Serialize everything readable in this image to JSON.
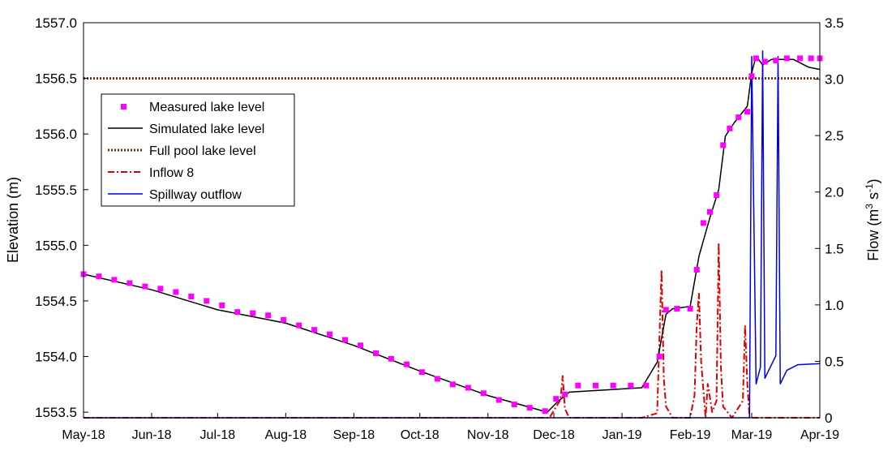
{
  "chart_data": {
    "type": "line",
    "ylabel": "Elevation (m)",
    "y2label": {
      "prefix": "Flow (m",
      "sup1": "3",
      "middle": " s",
      "sup2": "-1",
      "suffix": ")"
    },
    "ylim": [
      1553.45,
      1557.0
    ],
    "y2lim": [
      0,
      3.5
    ],
    "xlim": [
      "2018-05-01",
      "2019-04-01"
    ],
    "xticks": [
      {
        "label": "May-18",
        "date": "2018-05-01"
      },
      {
        "label": "Jun-18",
        "date": "2018-06-01"
      },
      {
        "label": "Jul-18",
        "date": "2018-07-01"
      },
      {
        "label": "Aug-18",
        "date": "2018-08-01"
      },
      {
        "label": "Sep-18",
        "date": "2018-09-01"
      },
      {
        "label": "Oct-18",
        "date": "2018-10-01"
      },
      {
        "label": "Nov-18",
        "date": "2018-11-01"
      },
      {
        "label": "Dec-18",
        "date": "2018-12-01"
      },
      {
        "label": "Jan-19",
        "date": "2019-01-01"
      },
      {
        "label": "Feb-19",
        "date": "2019-02-01"
      },
      {
        "label": "Mar-19",
        "date": "2019-03-01"
      },
      {
        "label": "Apr-19",
        "date": "2019-04-01"
      }
    ],
    "yticks": [
      "1553.5",
      "1554.0",
      "1554.5",
      "1555.0",
      "1555.5",
      "1556.0",
      "1556.5",
      "1557.0"
    ],
    "y2ticks": [
      "0",
      "0.5",
      "1.0",
      "1.5",
      "2.0",
      "2.5",
      "3.0",
      "3.5"
    ],
    "legend": {
      "placement": "upper-left",
      "entries": [
        {
          "label": "Measured lake level",
          "color": "#ff00ff",
          "style": "marker"
        },
        {
          "label": "Simulated lake level",
          "color": "#000000",
          "style": "solid"
        },
        {
          "label": "Full pool lake level",
          "color": "#8b2500",
          "style": "dotted"
        },
        {
          "label": "Inflow 8",
          "color": "#e00000",
          "style": "dashdot"
        },
        {
          "label": "Spillway outflow",
          "color": "#0000e0",
          "style": "solid"
        }
      ]
    },
    "full_pool_level": 1556.5,
    "series": [
      {
        "name": "Measured lake level",
        "axis": "left",
        "points": [
          [
            "2018-05-01",
            1554.74
          ],
          [
            "2018-05-08",
            1554.72
          ],
          [
            "2018-05-15",
            1554.69
          ],
          [
            "2018-05-22",
            1554.66
          ],
          [
            "2018-05-29",
            1554.63
          ],
          [
            "2018-06-05",
            1554.61
          ],
          [
            "2018-06-12",
            1554.58
          ],
          [
            "2018-06-19",
            1554.54
          ],
          [
            "2018-06-26",
            1554.5
          ],
          [
            "2018-07-03",
            1554.46
          ],
          [
            "2018-07-10",
            1554.4
          ],
          [
            "2018-07-17",
            1554.39
          ],
          [
            "2018-07-24",
            1554.37
          ],
          [
            "2018-07-31",
            1554.33
          ],
          [
            "2018-08-07",
            1554.28
          ],
          [
            "2018-08-14",
            1554.24
          ],
          [
            "2018-08-21",
            1554.2
          ],
          [
            "2018-08-28",
            1554.15
          ],
          [
            "2018-09-04",
            1554.1
          ],
          [
            "2018-09-11",
            1554.03
          ],
          [
            "2018-09-18",
            1553.98
          ],
          [
            "2018-09-25",
            1553.93
          ],
          [
            "2018-10-02",
            1553.86
          ],
          [
            "2018-10-09",
            1553.8
          ],
          [
            "2018-10-16",
            1553.75
          ],
          [
            "2018-10-23",
            1553.72
          ],
          [
            "2018-10-30",
            1553.67
          ],
          [
            "2018-11-06",
            1553.61
          ],
          [
            "2018-11-13",
            1553.57
          ],
          [
            "2018-11-20",
            1553.54
          ],
          [
            "2018-11-27",
            1553.51
          ],
          [
            "2018-12-02",
            1553.62
          ],
          [
            "2018-12-06",
            1553.66
          ],
          [
            "2018-12-12",
            1553.74
          ],
          [
            "2018-12-20",
            1553.74
          ],
          [
            "2018-12-28",
            1553.74
          ],
          [
            "2019-01-05",
            1553.74
          ],
          [
            "2019-01-12",
            1553.74
          ],
          [
            "2019-01-18",
            1554.0
          ],
          [
            "2019-01-21",
            1554.42
          ],
          [
            "2019-01-26",
            1554.43
          ],
          [
            "2019-02-01",
            1554.43
          ],
          [
            "2019-02-04",
            1554.78
          ],
          [
            "2019-02-07",
            1555.2
          ],
          [
            "2019-02-10",
            1555.3
          ],
          [
            "2019-02-13",
            1555.45
          ],
          [
            "2019-02-16",
            1555.9
          ],
          [
            "2019-02-19",
            1556.05
          ],
          [
            "2019-02-23",
            1556.15
          ],
          [
            "2019-02-27",
            1556.2
          ],
          [
            "2019-03-01",
            1556.52
          ],
          [
            "2019-03-03",
            1556.68
          ],
          [
            "2019-03-07",
            1556.65
          ],
          [
            "2019-03-12",
            1556.66
          ],
          [
            "2019-03-17",
            1556.68
          ],
          [
            "2019-03-23",
            1556.68
          ],
          [
            "2019-03-28",
            1556.68
          ],
          [
            "2019-04-01",
            1556.68
          ]
        ]
      },
      {
        "name": "Simulated lake level",
        "axis": "left",
        "points": [
          [
            "2018-05-01",
            1554.74
          ],
          [
            "2018-06-01",
            1554.6
          ],
          [
            "2018-07-01",
            1554.42
          ],
          [
            "2018-08-01",
            1554.3
          ],
          [
            "2018-09-01",
            1554.1
          ],
          [
            "2018-10-01",
            1553.87
          ],
          [
            "2018-11-01",
            1553.65
          ],
          [
            "2018-11-28",
            1553.5
          ],
          [
            "2018-12-03",
            1553.6
          ],
          [
            "2018-12-08",
            1553.68
          ],
          [
            "2019-01-10",
            1553.72
          ],
          [
            "2019-01-17",
            1553.95
          ],
          [
            "2019-01-21",
            1554.38
          ],
          [
            "2019-01-24",
            1554.43
          ],
          [
            "2019-02-01",
            1554.45
          ],
          [
            "2019-02-05",
            1554.9
          ],
          [
            "2019-02-10",
            1555.25
          ],
          [
            "2019-02-14",
            1555.5
          ],
          [
            "2019-02-17",
            1555.98
          ],
          [
            "2019-02-21",
            1556.1
          ],
          [
            "2019-02-27",
            1556.25
          ],
          [
            "2019-03-01",
            1556.55
          ],
          [
            "2019-03-03",
            1556.7
          ],
          [
            "2019-03-06",
            1556.62
          ],
          [
            "2019-03-10",
            1556.67
          ],
          [
            "2019-03-20",
            1556.67
          ],
          [
            "2019-03-27",
            1556.6
          ],
          [
            "2019-04-01",
            1556.58
          ]
        ]
      },
      {
        "name": "Full pool lake level",
        "axis": "left",
        "points": [
          [
            "2018-05-01",
            1556.5
          ],
          [
            "2019-04-01",
            1556.5
          ]
        ]
      },
      {
        "name": "Inflow 8",
        "axis": "right",
        "points": [
          [
            "2018-05-01",
            0.0
          ],
          [
            "2018-11-29",
            0.0
          ],
          [
            "2018-12-04",
            0.16
          ],
          [
            "2018-12-05",
            0.37
          ],
          [
            "2018-12-06",
            0.08
          ],
          [
            "2018-12-08",
            0.0
          ],
          [
            "2019-01-10",
            0.0
          ],
          [
            "2019-01-17",
            0.04
          ],
          [
            "2019-01-19",
            1.31
          ],
          [
            "2019-01-20",
            0.35
          ],
          [
            "2019-01-21",
            0.1
          ],
          [
            "2019-01-24",
            0.0
          ],
          [
            "2019-02-01",
            0.0
          ],
          [
            "2019-02-03",
            0.2
          ],
          [
            "2019-02-04",
            0.82
          ],
          [
            "2019-02-05",
            1.1
          ],
          [
            "2019-02-06",
            0.5
          ],
          [
            "2019-02-08",
            0.0
          ],
          [
            "2019-02-09",
            0.3
          ],
          [
            "2019-02-10",
            0.18
          ],
          [
            "2019-02-11",
            0.05
          ],
          [
            "2019-02-13",
            0.15
          ],
          [
            "2019-02-14",
            1.55
          ],
          [
            "2019-02-15",
            0.45
          ],
          [
            "2019-02-16",
            0.1
          ],
          [
            "2019-02-20",
            0.0
          ],
          [
            "2019-02-25",
            0.15
          ],
          [
            "2019-02-26",
            0.82
          ],
          [
            "2019-02-27",
            0.3
          ],
          [
            "2019-02-28",
            0.0
          ],
          [
            "2019-04-01",
            0.0
          ]
        ]
      },
      {
        "name": "Spillway outflow",
        "axis": "right",
        "points": [
          [
            "2018-05-01",
            0.0
          ],
          [
            "2019-02-28",
            0.0
          ],
          [
            "2019-03-01",
            3.2
          ],
          [
            "2019-03-03",
            0.3
          ],
          [
            "2019-03-05",
            0.45
          ],
          [
            "2019-03-06",
            3.25
          ],
          [
            "2019-03-07",
            0.35
          ],
          [
            "2019-03-12",
            0.55
          ],
          [
            "2019-03-13",
            3.2
          ],
          [
            "2019-03-14",
            0.3
          ],
          [
            "2019-03-17",
            0.42
          ],
          [
            "2019-03-22",
            0.47
          ],
          [
            "2019-04-01",
            0.48
          ]
        ]
      }
    ]
  },
  "colors": {
    "measured": "#ff00ff",
    "simulated": "#000000",
    "fullpool": "#8b2500",
    "inflow": "#e00000",
    "spillway": "#0000e0"
  }
}
